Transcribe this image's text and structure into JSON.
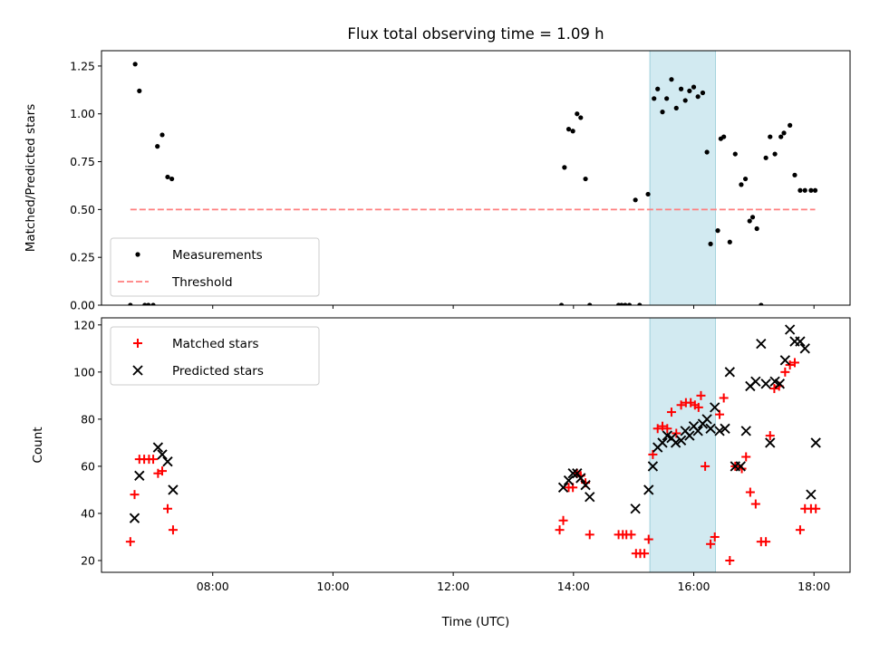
{
  "chart_data": {
    "title": "Flux total observing time = 1.09 h",
    "xlabel": "Time (UTC)",
    "x_unit": "hours UTC",
    "xlim": [
      6.15,
      18.6
    ],
    "x_ticks": [
      8,
      10,
      12,
      14,
      16,
      18
    ],
    "x_tick_labels": [
      "08:00",
      "10:00",
      "12:00",
      "14:00",
      "16:00",
      "18:00"
    ],
    "shaded_span": {
      "x": [
        15.27,
        16.36
      ],
      "color": "#add8e6"
    },
    "panels": [
      {
        "type": "scatter",
        "ylabel": "Matched/Predicted stars",
        "ylim": [
          0,
          1.33
        ],
        "y_ticks": [
          0,
          0.25,
          0.5,
          0.75,
          1.0,
          1.25
        ],
        "y_tick_labels": [
          "0.00",
          "0.25",
          "0.50",
          "0.75",
          "1.00",
          "1.25"
        ],
        "legend_position": "lower-left",
        "series": [
          {
            "name": "Measurements",
            "style": "dot",
            "color": "#000000",
            "x": [
              6.63,
              6.71,
              6.78,
              6.87,
              6.93,
              7.01,
              7.08,
              7.16,
              7.25,
              7.32,
              13.8,
              13.85,
              13.92,
              13.99,
              14.06,
              14.12,
              14.2,
              14.27,
              14.75,
              14.8,
              14.86,
              14.93,
              15.03,
              15.1,
              15.24,
              15.34,
              15.4,
              15.48,
              15.55,
              15.63,
              15.71,
              15.79,
              15.86,
              15.93,
              16.0,
              16.07,
              16.15,
              16.22,
              16.28,
              16.4,
              16.45,
              16.5,
              16.6,
              16.69,
              16.79,
              16.86,
              16.93,
              16.98,
              17.05,
              17.12,
              17.2,
              17.27,
              17.35,
              17.45,
              17.5,
              17.6,
              17.68,
              17.77,
              17.85,
              17.95,
              18.02
            ],
            "y": [
              0.0,
              1.26,
              1.12,
              0.0,
              0.0,
              0.0,
              0.83,
              0.89,
              0.67,
              0.66,
              0.0,
              0.72,
              0.92,
              0.91,
              1.0,
              0.98,
              0.66,
              0.0,
              0.0,
              0.0,
              0.0,
              0.0,
              0.55,
              0.0,
              0.58,
              1.08,
              1.13,
              1.01,
              1.08,
              1.18,
              1.03,
              1.13,
              1.07,
              1.12,
              1.14,
              1.09,
              1.11,
              0.8,
              0.32,
              0.39,
              0.87,
              0.88,
              0.33,
              0.79,
              0.63,
              0.66,
              0.44,
              0.46,
              0.4,
              0.0,
              0.77,
              0.88,
              0.79,
              0.88,
              0.9,
              0.94,
              0.68,
              0.6,
              0.6,
              0.6,
              0.6
            ]
          },
          {
            "name": "Threshold",
            "style": "dashed-line",
            "color": "#ff7f7f",
            "x": [
              6.63,
              18.02
            ],
            "y": [
              0.5,
              0.5
            ]
          }
        ]
      },
      {
        "type": "scatter",
        "ylabel": "Count",
        "ylim": [
          15,
          123
        ],
        "y_ticks": [
          20,
          40,
          60,
          80,
          100,
          120
        ],
        "y_tick_labels": [
          "20",
          "40",
          "60",
          "80",
          "100",
          "120"
        ],
        "legend_position": "upper-left",
        "series": [
          {
            "name": "Matched stars",
            "style": "plus",
            "color": "#ff0000",
            "x": [
              6.63,
              6.7,
              6.78,
              6.86,
              6.94,
              7.01,
              7.09,
              7.16,
              7.25,
              7.34,
              13.77,
              13.83,
              13.92,
              13.99,
              14.06,
              14.12,
              14.2,
              14.27,
              14.75,
              14.82,
              14.88,
              14.96,
              15.04,
              15.11,
              15.18,
              15.25,
              15.32,
              15.4,
              15.48,
              15.56,
              15.63,
              15.71,
              15.79,
              15.87,
              15.95,
              16.02,
              16.08,
              16.12,
              16.19,
              16.28,
              16.35,
              16.43,
              16.5,
              16.6,
              16.69,
              16.8,
              16.87,
              16.94,
              17.03,
              17.12,
              17.2,
              17.27,
              17.34,
              17.42,
              17.52,
              17.6,
              17.68,
              17.77,
              17.85,
              17.95,
              18.03
            ],
            "y": [
              28,
              48,
              63,
              63,
              63,
              63,
              57,
              58,
              42,
              33,
              33,
              37,
              51,
              51,
              57,
              56,
              53,
              31,
              31,
              31,
              31,
              31,
              23,
              23,
              23,
              29,
              65,
              76,
              77,
              76,
              83,
              74,
              86,
              87,
              87,
              86,
              85,
              90,
              60,
              27,
              30,
              82,
              89,
              20,
              60,
              59,
              64,
              49,
              44,
              28,
              28,
              73,
              93,
              94,
              100,
              103,
              104,
              33,
              42,
              42,
              42
            ]
          },
          {
            "name": "Predicted stars",
            "style": "cross",
            "color": "#000000",
            "x": [
              6.7,
              6.78,
              7.09,
              7.16,
              7.25,
              7.34,
              13.83,
              13.92,
              13.99,
              14.06,
              14.12,
              14.2,
              14.27,
              15.03,
              15.25,
              15.32,
              15.4,
              15.48,
              15.56,
              15.63,
              15.7,
              15.79,
              15.86,
              15.93,
              16.0,
              16.07,
              16.15,
              16.22,
              16.28,
              16.35,
              16.43,
              16.52,
              16.6,
              16.69,
              16.78,
              16.87,
              16.94,
              17.03,
              17.12,
              17.2,
              17.27,
              17.35,
              17.43,
              17.52,
              17.6,
              17.68,
              17.77,
              17.85,
              17.95,
              18.03
            ],
            "y": [
              38,
              56,
              68,
              65,
              62,
              50,
              51,
              54,
              57,
              57,
              55,
              52,
              47,
              42,
              50,
              60,
              68,
              70,
              73,
              72,
              70,
              71,
              75,
              73,
              77,
              75,
              78,
              80,
              76,
              85,
              75,
              76,
              100,
              60,
              60,
              75,
              94,
              96,
              112,
              95,
              70,
              96,
              95,
              105,
              118,
              113,
              113,
              110,
              48,
              70
            ]
          }
        ]
      }
    ]
  }
}
